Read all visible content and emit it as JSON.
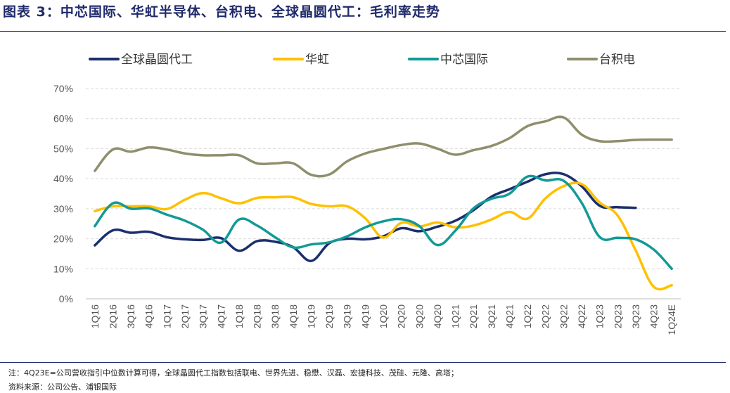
{
  "header": {
    "title": "图表 3：中芯国际、华虹半导体、台积电、全球晶圆代工：毛利率走势"
  },
  "footer": {
    "note": "注：4Q23E=公司营收指引中位数计算可得，全球晶圆代工指数包括联电、世界先进、稳懋、汉磊、宏捷科技、茂硅、元隆、高塔；",
    "source": "资料来源：公司公告、浦银国际"
  },
  "chart_data": {
    "type": "line",
    "title": "中芯国际、华虹半导体、台积电、全球晶圆代工：毛利率走势",
    "xlabel": "",
    "ylabel": "",
    "ylim": [
      0,
      70
    ],
    "yticks": [
      "0%",
      "10%",
      "20%",
      "30%",
      "40%",
      "50%",
      "60%",
      "70%"
    ],
    "grid": true,
    "legend_position": "top",
    "categories": [
      "1Q16",
      "2Q16",
      "3Q16",
      "4Q16",
      "1Q17",
      "2Q17",
      "3Q17",
      "4Q17",
      "1Q18",
      "2Q18",
      "3Q18",
      "4Q18",
      "1Q19",
      "2Q19",
      "3Q19",
      "4Q19",
      "1Q20",
      "2Q20",
      "3Q20",
      "4Q20",
      "1Q21",
      "2Q21",
      "3Q21",
      "4Q21",
      "1Q22",
      "2Q22",
      "3Q22",
      "4Q22",
      "1Q23",
      "2Q23",
      "3Q23",
      "4Q23",
      "1Q24E"
    ],
    "series": [
      {
        "name": "全球晶圆代工",
        "color": "#1b2f6e",
        "values": [
          17.8,
          22.8,
          22.0,
          22.3,
          20.5,
          19.8,
          19.6,
          20.2,
          16.0,
          19.2,
          19.0,
          17.2,
          12.6,
          18.5,
          20.0,
          19.8,
          20.8,
          23.5,
          22.5,
          24.0,
          26.0,
          29.5,
          34.0,
          36.5,
          39.0,
          41.5,
          41.5,
          37.5,
          31.0,
          30.5,
          30.3,
          null,
          null
        ]
      },
      {
        "name": "华虹",
        "color": "#ffc000",
        "values": [
          29.2,
          30.8,
          30.8,
          30.8,
          29.9,
          33.0,
          35.2,
          33.5,
          31.8,
          33.6,
          33.8,
          33.8,
          31.6,
          30.8,
          30.8,
          26.8,
          20.4,
          25.3,
          24.1,
          25.4,
          23.8,
          24.4,
          26.4,
          28.9,
          26.7,
          33.5,
          37.5,
          38.2,
          32.1,
          27.7,
          16.1,
          4.0,
          4.5
        ]
      },
      {
        "name": "中芯国际",
        "color": "#129a96",
        "values": [
          24.2,
          31.8,
          30.0,
          30.1,
          28.0,
          26.0,
          23.0,
          18.7,
          26.4,
          24.4,
          20.5,
          17.1,
          18.1,
          18.8,
          20.8,
          23.8,
          25.8,
          26.5,
          24.2,
          17.9,
          22.7,
          30.1,
          33.3,
          35.0,
          40.7,
          39.4,
          39.3,
          32.0,
          20.6,
          20.3,
          19.8,
          16.4,
          10.0
        ]
      },
      {
        "name": "台积电",
        "color": "#8f8f6d",
        "values": [
          42.6,
          49.7,
          49.0,
          50.4,
          49.7,
          48.4,
          47.8,
          47.8,
          47.8,
          45.1,
          45.1,
          45.1,
          41.3,
          41.4,
          45.8,
          48.4,
          49.9,
          51.2,
          51.7,
          50.0,
          48.0,
          49.5,
          50.9,
          53.5,
          57.5,
          59.1,
          60.4,
          54.7,
          52.5,
          52.5,
          52.9,
          53.0,
          53.0
        ]
      }
    ]
  }
}
